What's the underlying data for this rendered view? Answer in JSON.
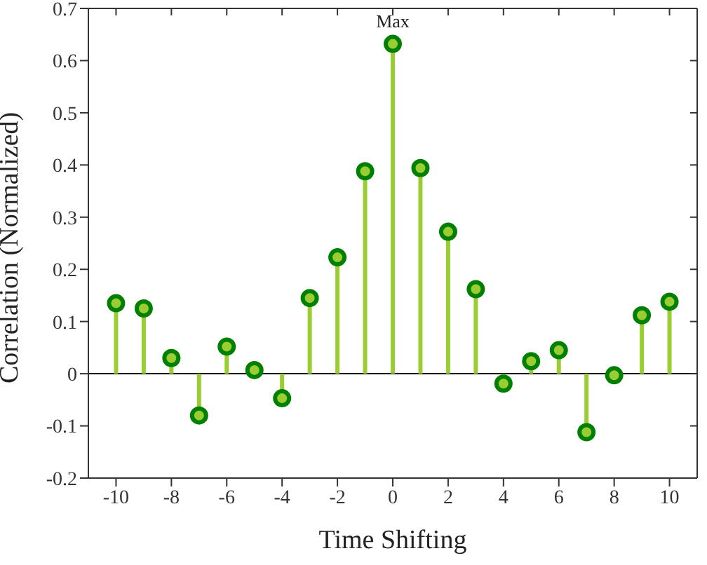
{
  "chart_data": {
    "type": "lollipop",
    "xlabel": "Time Shifting",
    "ylabel": "Correlation (Normalized)",
    "x": [
      -10,
      -9,
      -8,
      -7,
      -6,
      -5,
      -4,
      -3,
      -2,
      -1,
      0,
      1,
      2,
      3,
      4,
      5,
      6,
      7,
      8,
      9,
      10
    ],
    "series": [
      {
        "color": "#9acd32",
        "values": [
          0.135,
          0.125,
          0.03,
          -0.08,
          0.052,
          0.007,
          -0.047,
          0.145,
          0.223,
          0.388,
          0.632,
          0.394,
          0.272,
          0.162,
          -0.019,
          0.024,
          0.045,
          -0.112,
          -0.003,
          0.112,
          0.138
        ]
      }
    ],
    "xlim": [
      -11,
      11
    ],
    "xticks": [
      -10,
      -8,
      -6,
      -4,
      -2,
      0,
      2,
      4,
      6,
      8,
      10
    ],
    "ylim": [
      -0.2,
      0.7
    ],
    "yticks": [
      -0.2,
      -0.1,
      0,
      0.1,
      0.2,
      0.3,
      0.4,
      0.5,
      0.6,
      0.7
    ],
    "ref_lines": [
      {
        "axis": "y",
        "value": 0,
        "color": "#000000"
      }
    ],
    "annotations": [
      {
        "text": "Max",
        "x": 0,
        "y": 0.632
      }
    ],
    "marker": "circle"
  }
}
